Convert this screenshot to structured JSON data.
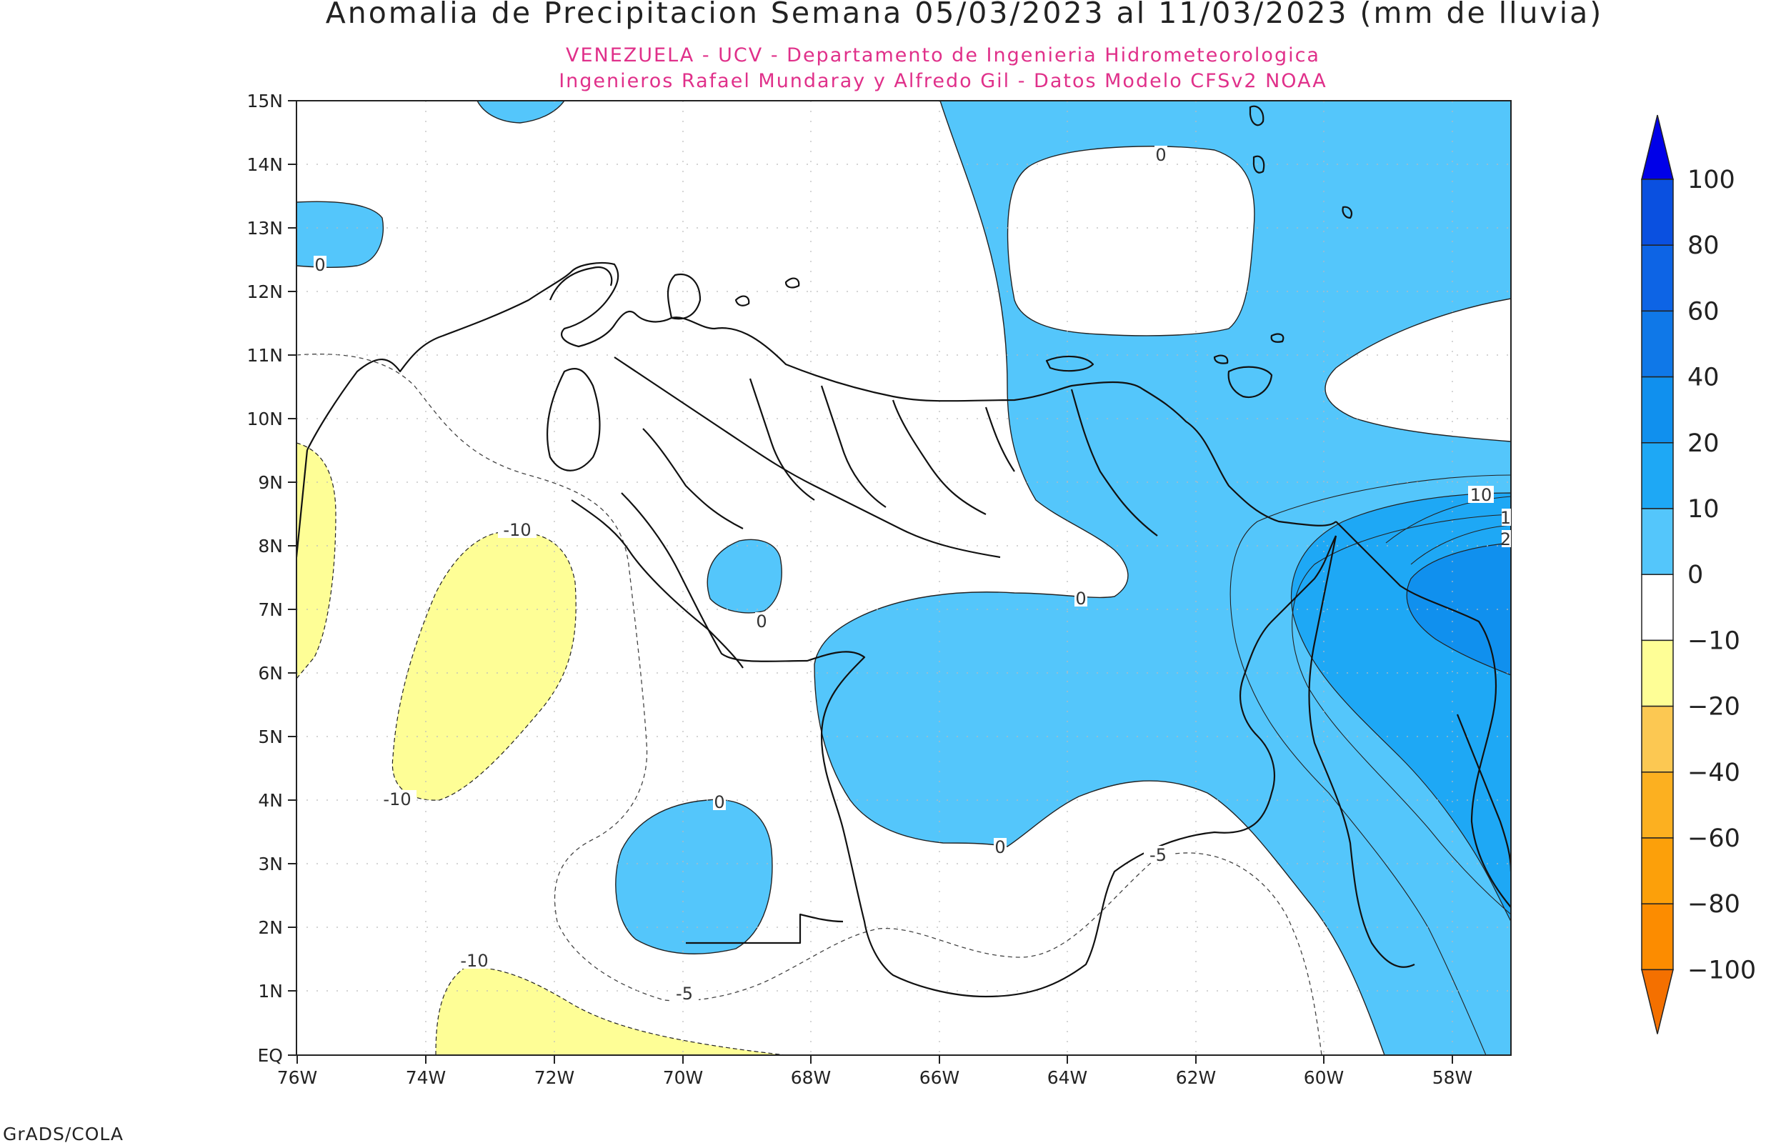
{
  "title": "Anomalia de Precipitacion Semana 05/03/2023 al 11/03/2023 (mm de lluvia)",
  "subtitle_1": "VENEZUELA - UCV - Departamento de Ingenieria Hidrometeorologica",
  "subtitle_2": "Ingenieros Rafael Mundaray y Alfredo Gil - Datos Modelo CFSv2 NOAA",
  "credit": "GrADS/COLA",
  "lat_ticks": [
    "15N",
    "14N",
    "13N",
    "12N",
    "11N",
    "10N",
    "9N",
    "8N",
    "7N",
    "6N",
    "5N",
    "4N",
    "3N",
    "2N",
    "1N",
    "EQ"
  ],
  "lon_ticks": [
    "76W",
    "74W",
    "72W",
    "70W",
    "68W",
    "66W",
    "64W",
    "62W",
    "60W",
    "58W"
  ],
  "legend": {
    "labels": [
      "100",
      "80",
      "60",
      "40",
      "20",
      "10",
      "0",
      "-10",
      "-20",
      "-40",
      "-60",
      "-80",
      "-100"
    ],
    "colors": [
      "#0000e8",
      "#0a50e0",
      "#0d64e5",
      "#0f78e8",
      "#1090ee",
      "#1ea8f5",
      "#54c6fb",
      "#ffffff",
      "#fefe96",
      "#fcc852",
      "#fcb020",
      "#fca00a",
      "#fc8c00",
      "#f47000"
    ]
  },
  "contour_labels": {
    "zero": "0",
    "ten": "10",
    "minus_ten": "-10",
    "minus_five": "-5",
    "cut_a": "1",
    "cut_b": "2"
  },
  "colors": {
    "positive_light": "#54c6fb",
    "positive_mid": "#1ea8f5",
    "positive_high": "#1090ee",
    "negative_light": "#fefe96",
    "title": "#222222",
    "subtitle": "#e0308a"
  }
}
